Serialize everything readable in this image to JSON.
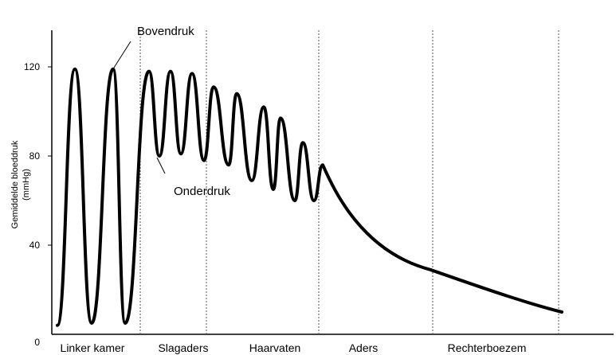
{
  "chart_data": {
    "type": "line",
    "title": "",
    "xlabel": "",
    "ylabel": "Gemiddelde bloeddruk",
    "ylabel_unit": "(mmHg)",
    "ylim": [
      0,
      138
    ],
    "y_ticks": [
      0,
      40,
      80,
      120
    ],
    "y_tick_labels": [
      "0",
      "40",
      "80",
      "120"
    ],
    "sections": [
      "Linker kamer",
      "Slagaders",
      "Haarvaten",
      "Aders",
      "Rechterboezem"
    ],
    "grid": "vertical dotted section dividers",
    "annotations": [
      "Bovendruk",
      "Onderdruk"
    ],
    "series": [
      {
        "values": [
          {
            "section": "Linker kamer",
            "peaks": [
              119,
              119
            ],
            "troughs": [
              4,
              5,
              5
            ]
          },
          {
            "section": "Slagaders",
            "peaks": [
              118,
              118,
              117
            ],
            "troughs": [
              80,
              81
            ]
          },
          {
            "section": "Haarvaten",
            "peaks": [
              111,
              108,
              102,
              97,
              86
            ],
            "troughs": [
              78,
              76,
              69,
              65,
              60
            ]
          },
          {
            "section": "Aders",
            "start": 76,
            "end": 29
          },
          {
            "section": "Rechterboezem",
            "start": 29,
            "end": 10
          }
        ]
      }
    ]
  }
}
